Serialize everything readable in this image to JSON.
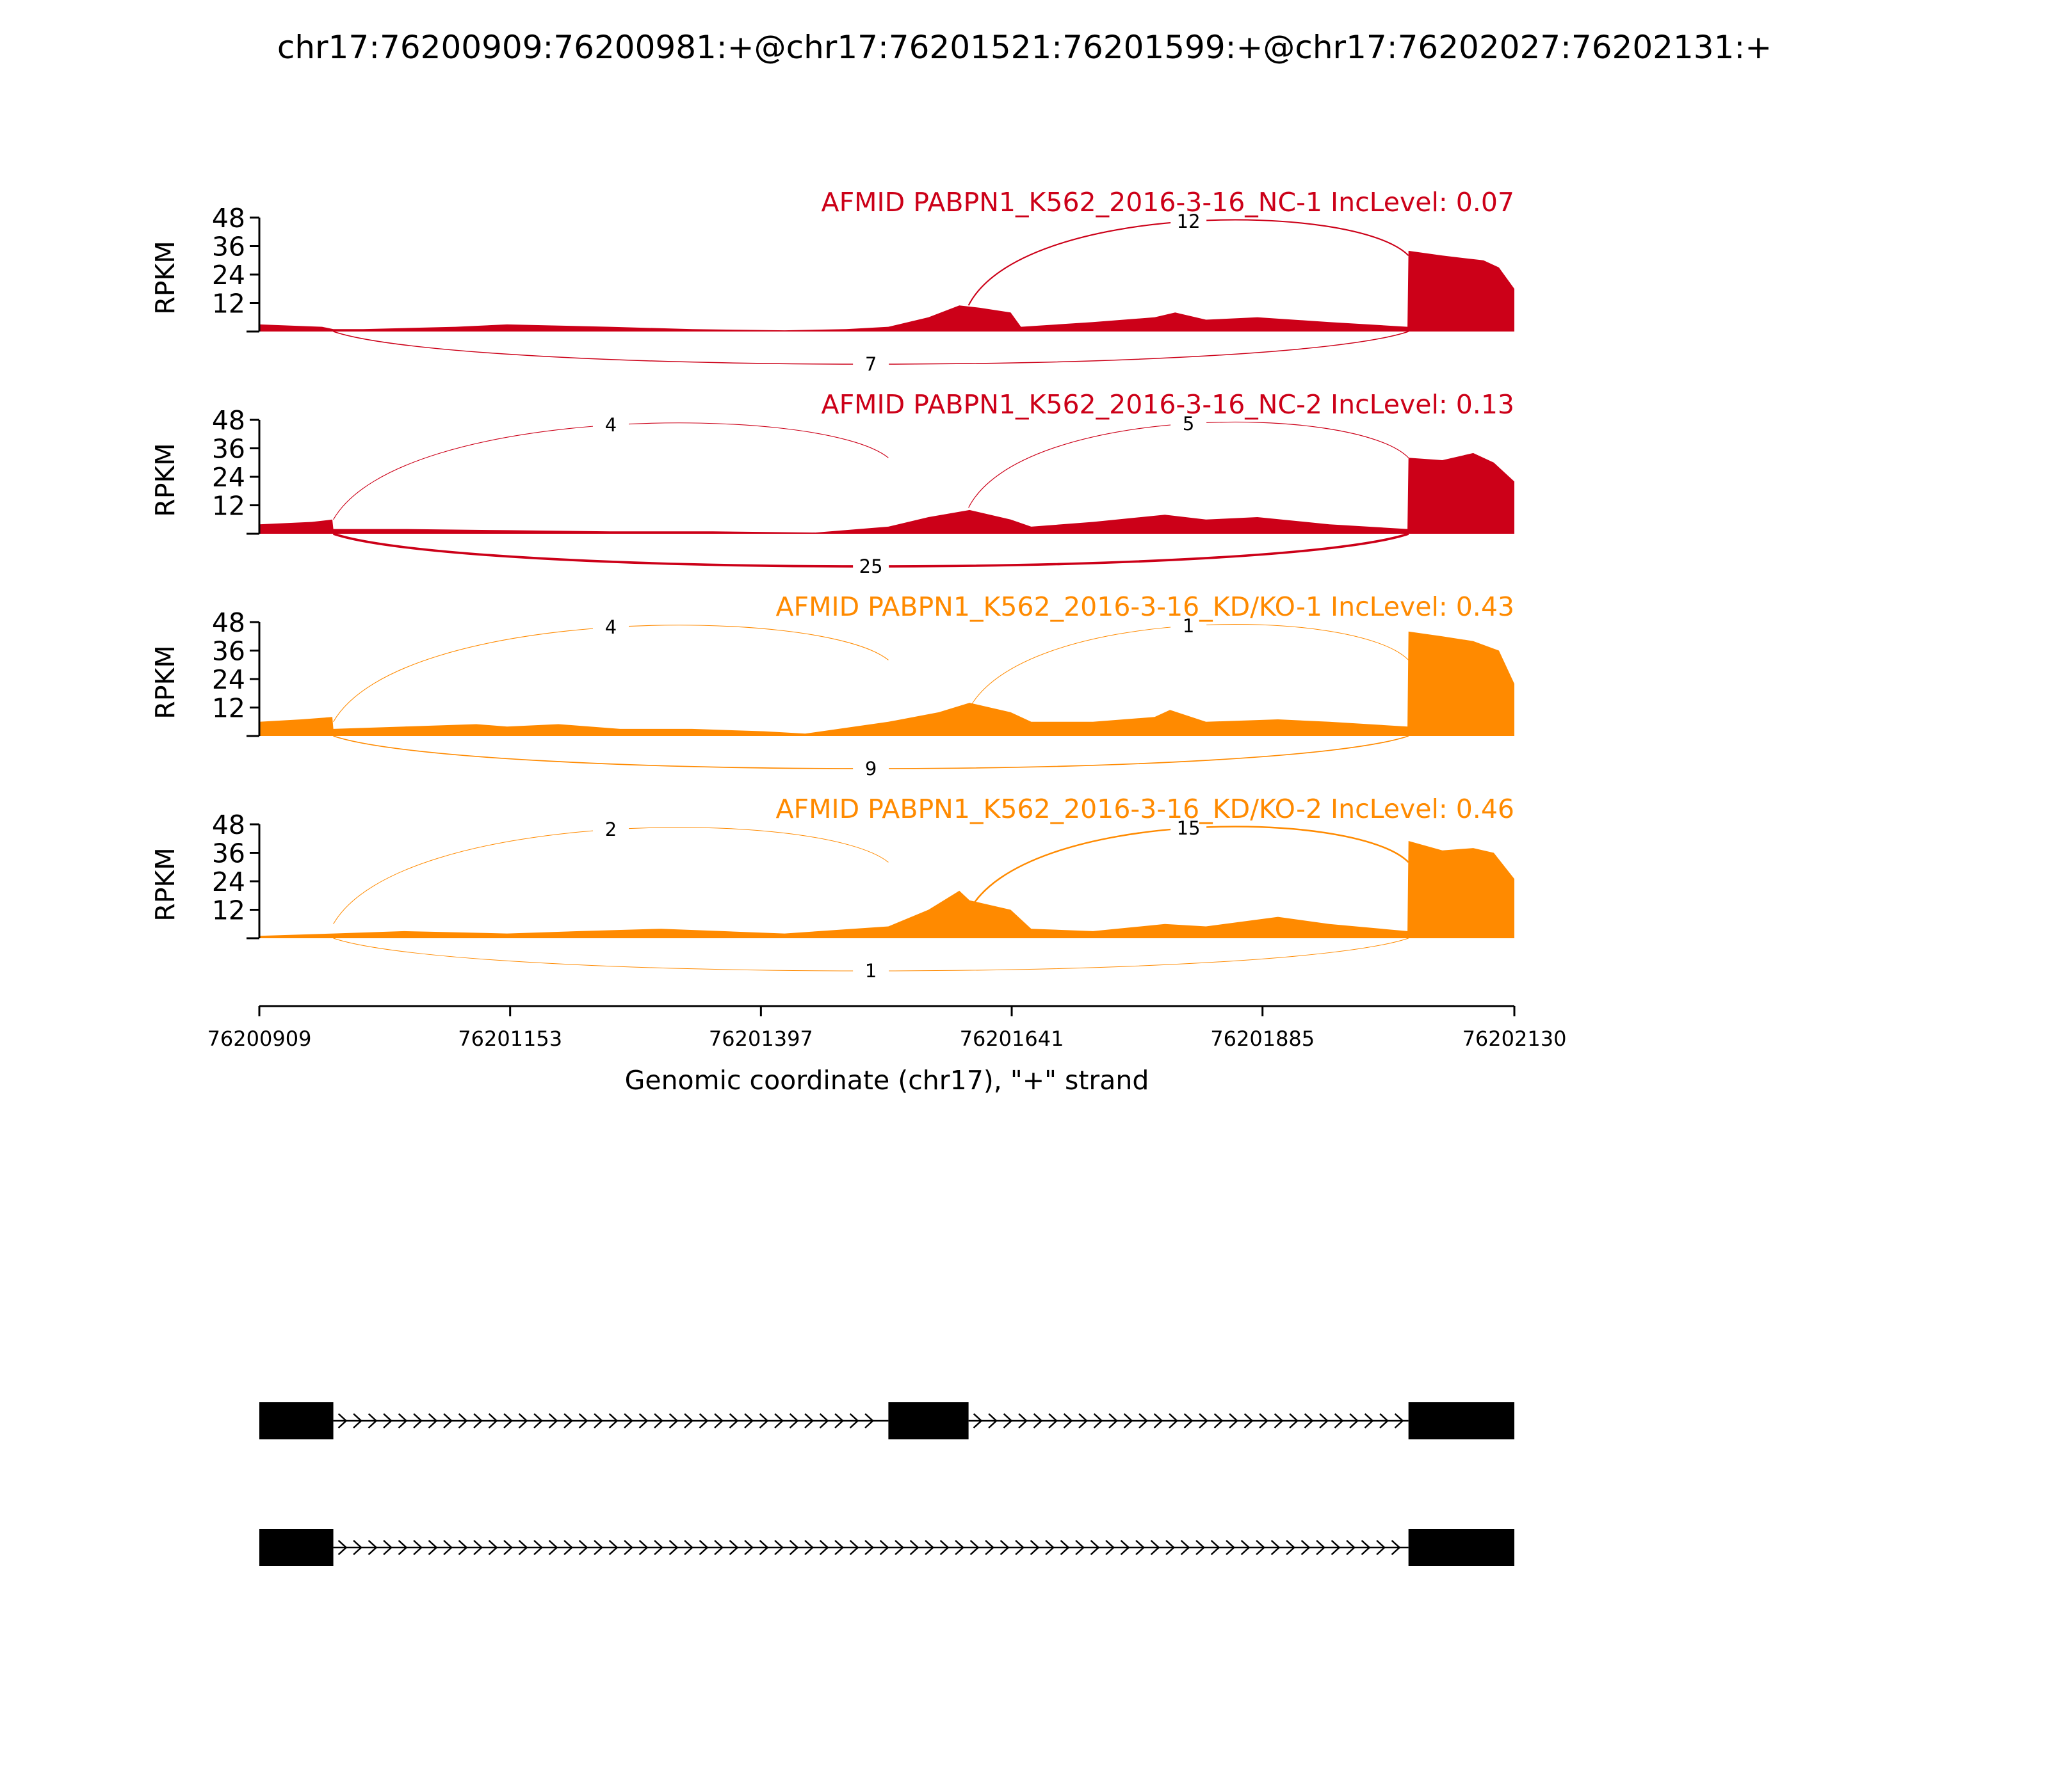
{
  "title": "chr17:76200909:76200981:+@chr17:76201521:76201599:+@chr17:76202027:76202131:+",
  "chart_data": {
    "type": "area",
    "subtype": "sashimi",
    "xlabel": "Genomic coordinate (chr17), \"+\" strand",
    "ylabel": "RPKM",
    "xlim": [
      76200909,
      76202130
    ],
    "xticks": [
      "76200909",
      "76201153",
      "76201397",
      "76201641",
      "76201885",
      "76202130"
    ],
    "ylim": [
      0,
      48
    ],
    "yticks": [
      "12",
      "24",
      "36",
      "48"
    ],
    "tracks": [
      {
        "label": "AFMID PABPN1_K562_2016-3-16_NC-1 IncLevel: 0.07",
        "color": "#cc0018",
        "coverage": [
          [
            76200909,
            3
          ],
          [
            76200970,
            2
          ],
          [
            76200981,
            1
          ],
          [
            76201010,
            1
          ],
          [
            76201100,
            2
          ],
          [
            76201150,
            3
          ],
          [
            76201250,
            2
          ],
          [
            76201330,
            1
          ],
          [
            76201420,
            0.5
          ],
          [
            76201480,
            1
          ],
          [
            76201521,
            2
          ],
          [
            76201560,
            6
          ],
          [
            76201590,
            11
          ],
          [
            76201610,
            10
          ],
          [
            76201640,
            8
          ],
          [
            76201650,
            2
          ],
          [
            76201720,
            4
          ],
          [
            76201780,
            6
          ],
          [
            76201800,
            8
          ],
          [
            76201830,
            5
          ],
          [
            76201880,
            6
          ],
          [
            76201950,
            4
          ],
          [
            76202026,
            2
          ],
          [
            76202027,
            34
          ],
          [
            76202060,
            32
          ],
          [
            76202100,
            30
          ],
          [
            76202115,
            27
          ],
          [
            76202130,
            18
          ]
        ],
        "junctions": [
          {
            "from": 76201599,
            "to": 76202027,
            "count": "12",
            "side": "above"
          },
          {
            "from": 76200981,
            "to": 76202027,
            "count": "7",
            "side": "below"
          }
        ]
      },
      {
        "label": "AFMID PABPN1_K562_2016-3-16_NC-2 IncLevel: 0.13",
        "color": "#cc0018",
        "coverage": [
          [
            76200909,
            4
          ],
          [
            76200960,
            5
          ],
          [
            76200980,
            6
          ],
          [
            76200981,
            2
          ],
          [
            76201050,
            2
          ],
          [
            76201150,
            1.5
          ],
          [
            76201250,
            1
          ],
          [
            76201350,
            1
          ],
          [
            76201450,
            0.5
          ],
          [
            76201521,
            3
          ],
          [
            76201560,
            7
          ],
          [
            76201600,
            10
          ],
          [
            76201640,
            6
          ],
          [
            76201660,
            3
          ],
          [
            76201720,
            5
          ],
          [
            76201790,
            8
          ],
          [
            76201830,
            6
          ],
          [
            76201880,
            7
          ],
          [
            76201950,
            4
          ],
          [
            76202026,
            2
          ],
          [
            76202027,
            32
          ],
          [
            76202060,
            31
          ],
          [
            76202090,
            34
          ],
          [
            76202110,
            30
          ],
          [
            76202130,
            22
          ]
        ],
        "junctions": [
          {
            "from": 76200981,
            "to": 76201521,
            "count": "4",
            "side": "above"
          },
          {
            "from": 76201599,
            "to": 76202027,
            "count": "5",
            "side": "above"
          },
          {
            "from": 76200981,
            "to": 76202027,
            "count": "25",
            "side": "below"
          }
        ]
      },
      {
        "label": "AFMID PABPN1_K562_2016-3-16_KD/KO-1 IncLevel: 0.43",
        "color": "#ff8a00",
        "coverage": [
          [
            76200909,
            6
          ],
          [
            76200950,
            7
          ],
          [
            76200980,
            8
          ],
          [
            76200981,
            3
          ],
          [
            76201050,
            4
          ],
          [
            76201120,
            5
          ],
          [
            76201150,
            4
          ],
          [
            76201200,
            5
          ],
          [
            76201260,
            3
          ],
          [
            76201330,
            3
          ],
          [
            76201400,
            2
          ],
          [
            76201440,
            1
          ],
          [
            76201521,
            6
          ],
          [
            76201570,
            10
          ],
          [
            76201600,
            14
          ],
          [
            76201640,
            10
          ],
          [
            76201660,
            6
          ],
          [
            76201720,
            6
          ],
          [
            76201780,
            8
          ],
          [
            76201795,
            11
          ],
          [
            76201830,
            6
          ],
          [
            76201900,
            7
          ],
          [
            76201950,
            6
          ],
          [
            76202026,
            4
          ],
          [
            76202027,
            44
          ],
          [
            76202060,
            42
          ],
          [
            76202090,
            40
          ],
          [
            76202115,
            36
          ],
          [
            76202130,
            22
          ]
        ],
        "junctions": [
          {
            "from": 76200981,
            "to": 76201521,
            "count": "4",
            "side": "above"
          },
          {
            "from": 76201599,
            "to": 76202027,
            "count": "1",
            "side": "above"
          },
          {
            "from": 76200981,
            "to": 76202027,
            "count": "9",
            "side": "below"
          }
        ]
      },
      {
        "label": "AFMID PABPN1_K562_2016-3-16_KD/KO-2 IncLevel: 0.46",
        "color": "#ff8a00",
        "coverage": [
          [
            76200909,
            1
          ],
          [
            76200981,
            2
          ],
          [
            76201050,
            3
          ],
          [
            76201150,
            2
          ],
          [
            76201220,
            3
          ],
          [
            76201300,
            4
          ],
          [
            76201360,
            3
          ],
          [
            76201420,
            2
          ],
          [
            76201521,
            5
          ],
          [
            76201560,
            12
          ],
          [
            76201590,
            20
          ],
          [
            76201600,
            16
          ],
          [
            76201640,
            12
          ],
          [
            76201660,
            4
          ],
          [
            76201720,
            3
          ],
          [
            76201790,
            6
          ],
          [
            76201830,
            5
          ],
          [
            76201900,
            9
          ],
          [
            76201950,
            6
          ],
          [
            76202026,
            3
          ],
          [
            76202027,
            41
          ],
          [
            76202060,
            37
          ],
          [
            76202090,
            38
          ],
          [
            76202110,
            36
          ],
          [
            76202130,
            25
          ]
        ],
        "junctions": [
          {
            "from": 76200981,
            "to": 76201521,
            "count": "2",
            "side": "above"
          },
          {
            "from": 76201599,
            "to": 76202027,
            "count": "15",
            "side": "above"
          },
          {
            "from": 76200981,
            "to": 76202027,
            "count": "1",
            "side": "below"
          }
        ]
      }
    ],
    "isoforms": [
      {
        "exons": [
          [
            76200909,
            76200981
          ],
          [
            76201521,
            76201599
          ],
          [
            76202027,
            76202131
          ]
        ]
      },
      {
        "exons": [
          [
            76200909,
            76200981
          ],
          [
            76202027,
            76202131
          ]
        ]
      }
    ]
  }
}
